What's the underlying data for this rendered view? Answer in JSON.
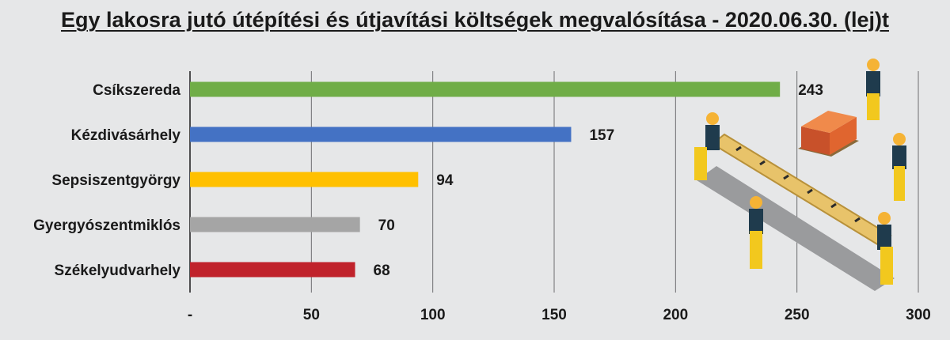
{
  "chart_data": {
    "type": "bar",
    "orientation": "horizontal",
    "title": "Egy lakosra jutó útépítési és útjavítási költségek megvalósítása - 2020.06.30. (lej)t",
    "categories": [
      "Csíkszereda",
      "Kézdivásárhely",
      "Sepsiszentgyörgy",
      "Gyergyószentmiklós",
      "Székelyudvarhely"
    ],
    "values": [
      243,
      157,
      94,
      70,
      68
    ],
    "value_labels": [
      "243",
      "157",
      "94",
      "70",
      "68"
    ],
    "colors": [
      "#70ad47",
      "#4472c4",
      "#ffc000",
      "#a5a5a5",
      "#c0222b"
    ],
    "xlim": [
      0,
      300
    ],
    "xticks": [
      0,
      50,
      100,
      150,
      200,
      250,
      300
    ],
    "xtick_labels": [
      "-",
      "50",
      "100",
      "150",
      "200",
      "250",
      "300"
    ],
    "grid": "vertical",
    "legend": "none"
  },
  "illustration": {
    "icon": "construction-workers-illustration"
  }
}
